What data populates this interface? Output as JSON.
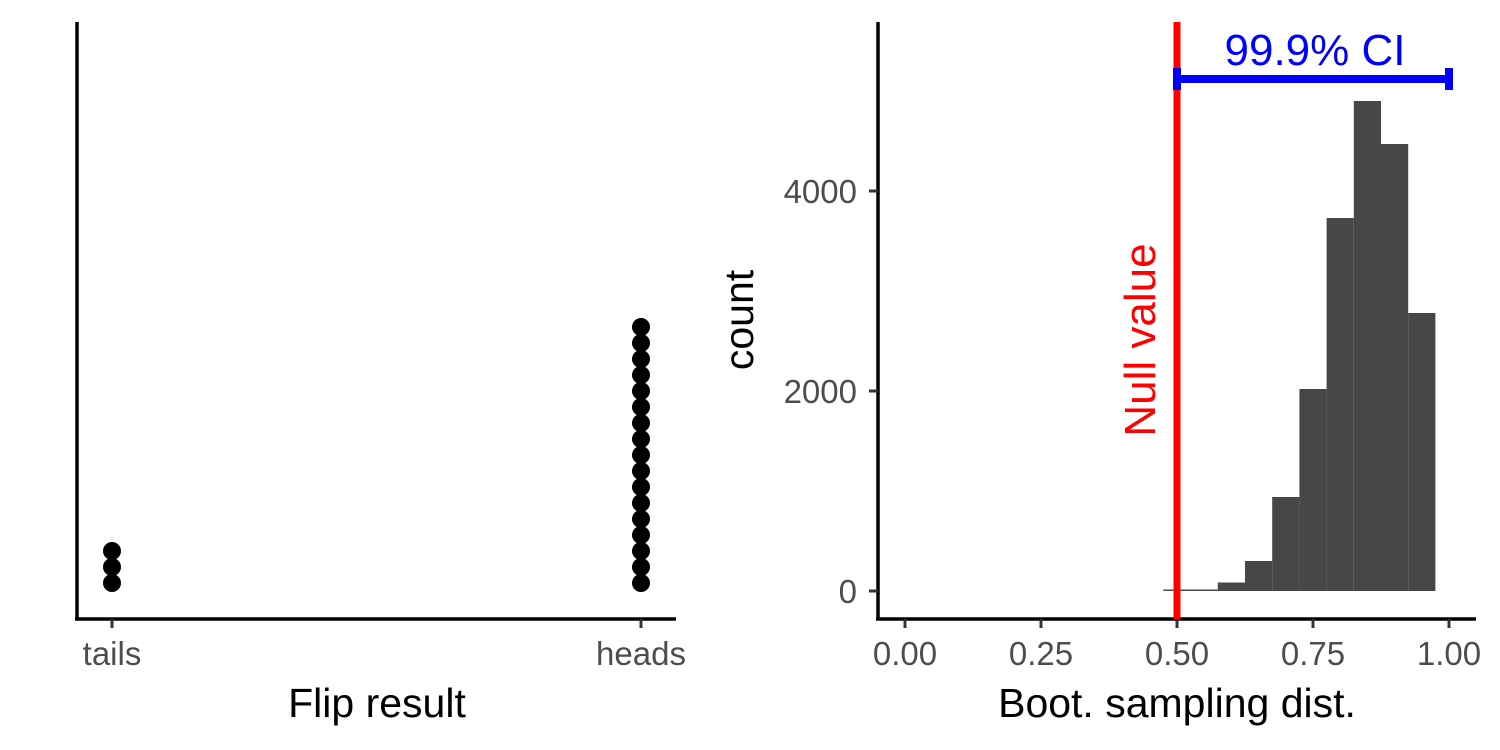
{
  "chart_data": [
    {
      "type": "scatter",
      "xlabel": "Flip result",
      "ylabel": "",
      "categories": [
        "tails",
        "heads"
      ],
      "counts": [
        3,
        17
      ],
      "point_color": "#000000"
    },
    {
      "type": "bar",
      "xlabel": "Boot. sampling dist.",
      "ylabel": "count",
      "xlim": [
        0,
        1
      ],
      "x_ticks": [
        "0.00",
        "0.25",
        "0.50",
        "0.75",
        "1.00"
      ],
      "x_tick_values": [
        0,
        0.25,
        0.5,
        0.75,
        1.0
      ],
      "y_ticks": [
        "0",
        "2000",
        "4000"
      ],
      "y_tick_values": [
        0,
        2000,
        4000
      ],
      "bin_width": 0.05,
      "bins": [
        {
          "x": 0.5,
          "count": 15
        },
        {
          "x": 0.55,
          "count": 15
        },
        {
          "x": 0.6,
          "count": 85
        },
        {
          "x": 0.65,
          "count": 300
        },
        {
          "x": 0.7,
          "count": 940
        },
        {
          "x": 0.75,
          "count": 2020
        },
        {
          "x": 0.8,
          "count": 3730
        },
        {
          "x": 0.85,
          "count": 4900
        },
        {
          "x": 0.9,
          "count": 4470
        },
        {
          "x": 0.95,
          "count": 2780
        }
      ],
      "bar_color": "#474747",
      "null_value": 0.5,
      "null_label": "Null value",
      "null_color": "#ff0000",
      "ci": {
        "lower": 0.5,
        "upper": 1.0,
        "y": 5120,
        "label": "99.9% CI",
        "color": "#0000ff"
      }
    }
  ]
}
